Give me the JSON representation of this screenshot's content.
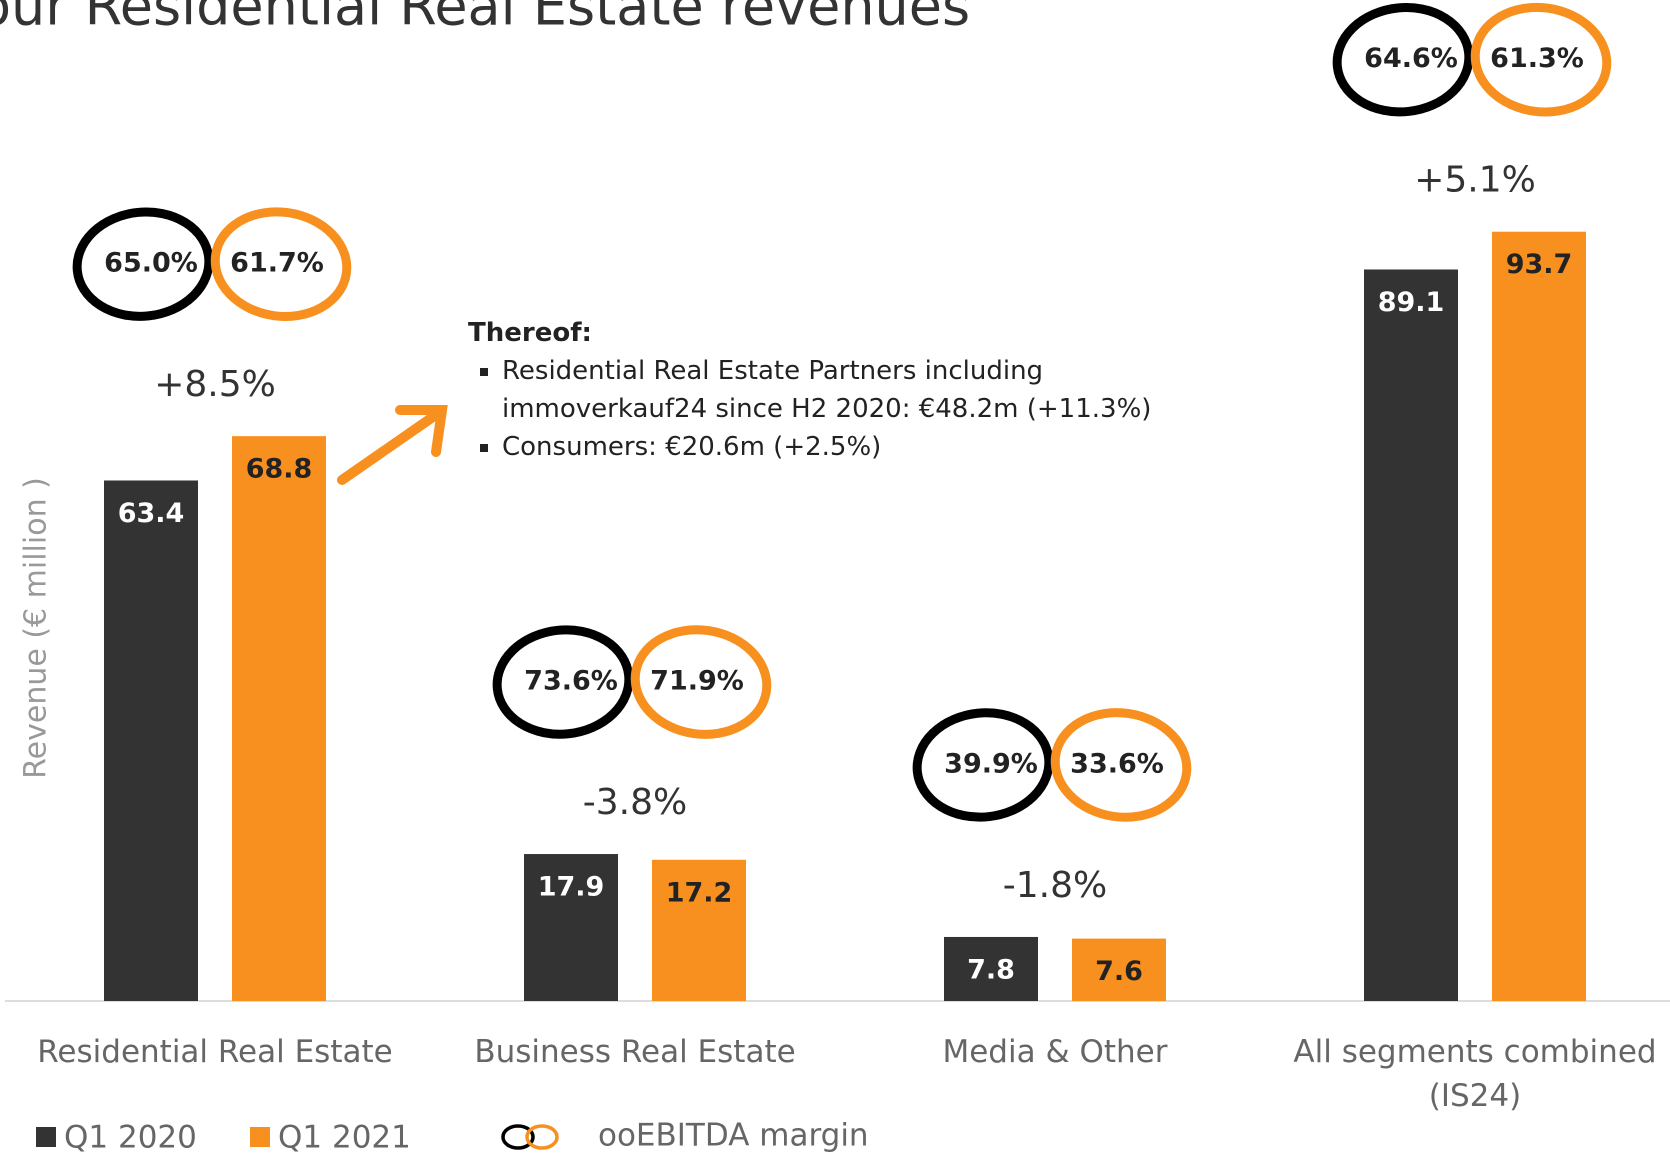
{
  "chart_data": {
    "type": "bar",
    "title": "our Residential Real Estate revenues",
    "y_label": "Revenue (€ million )",
    "categories": [
      "Residential Real Estate",
      "Business Real Estate",
      "Media & Other",
      "All segments combined (IS24)"
    ],
    "series": [
      {
        "name": "Q1 2020",
        "color": "#333333",
        "values": [
          63.4,
          17.9,
          7.8,
          89.1
        ]
      },
      {
        "name": "Q1 2021",
        "color": "#f7901e",
        "values": [
          68.8,
          17.2,
          7.6,
          93.7
        ]
      }
    ],
    "growth": {
      "values": [
        8.5,
        -3.8,
        -1.8,
        5.1
      ],
      "value_labels": [
        "+8.5%",
        "-3.8%",
        "-1.8%",
        "+5.1%"
      ]
    },
    "margins": {
      "name": "ooEBITDA margin",
      "series": [
        {
          "color": "#000000",
          "values": [
            65.0,
            73.6,
            39.9,
            64.6
          ],
          "value_labels": [
            "65.0%",
            "73.6%",
            "39.9%",
            "64.6%"
          ]
        },
        {
          "color": "#f7901e",
          "values": [
            61.7,
            71.9,
            33.6,
            61.3
          ],
          "value_labels": [
            "61.7%",
            "71.9%",
            "33.6%",
            "61.3%"
          ]
        }
      ]
    },
    "annotation": {
      "heading": "Thereof:",
      "bullets": [
        "Residential Real Estate Partners including immoverkauf24 since H2 2020:  €48.2m (+11.3%)",
        "Consumers: €20.6m (+2.5%)"
      ]
    },
    "ylim": [
      0,
      100
    ]
  }
}
